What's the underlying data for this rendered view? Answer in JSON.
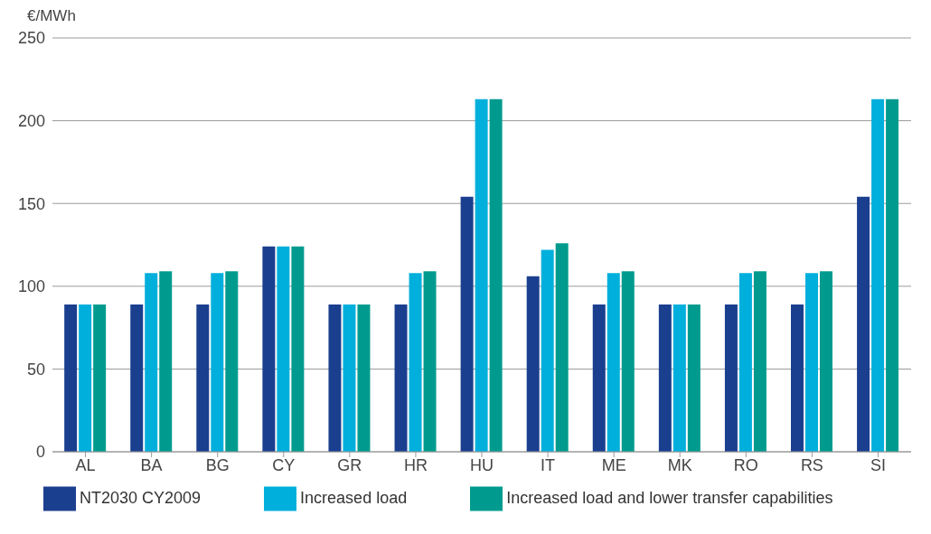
{
  "chart_data": {
    "type": "bar",
    "ylabel": "€/MWh",
    "categories": [
      "AL",
      "BA",
      "BG",
      "CY",
      "GR",
      "HR",
      "HU",
      "IT",
      "ME",
      "MK",
      "RO",
      "RS",
      "SI"
    ],
    "series": [
      {
        "name": "NT2030 CY2009",
        "color": "#1b3f8f",
        "values": [
          89,
          89,
          89,
          124,
          89,
          89,
          154,
          106,
          89,
          89,
          89,
          89,
          154
        ]
      },
      {
        "name": "Increased load",
        "color": "#00afdb",
        "values": [
          89,
          108,
          108,
          124,
          89,
          108,
          213,
          122,
          108,
          89,
          108,
          108,
          213
        ]
      },
      {
        "name": "Increased load and lower transfer capabilities",
        "color": "#009b8e",
        "values": [
          89,
          109,
          109,
          124,
          89,
          109,
          213,
          126,
          109,
          89,
          109,
          109,
          213
        ]
      }
    ],
    "ylim": [
      0,
      250
    ],
    "yticks": [
      0,
      50,
      100,
      150,
      200,
      250
    ],
    "grid": "y",
    "legend": "bottom"
  }
}
